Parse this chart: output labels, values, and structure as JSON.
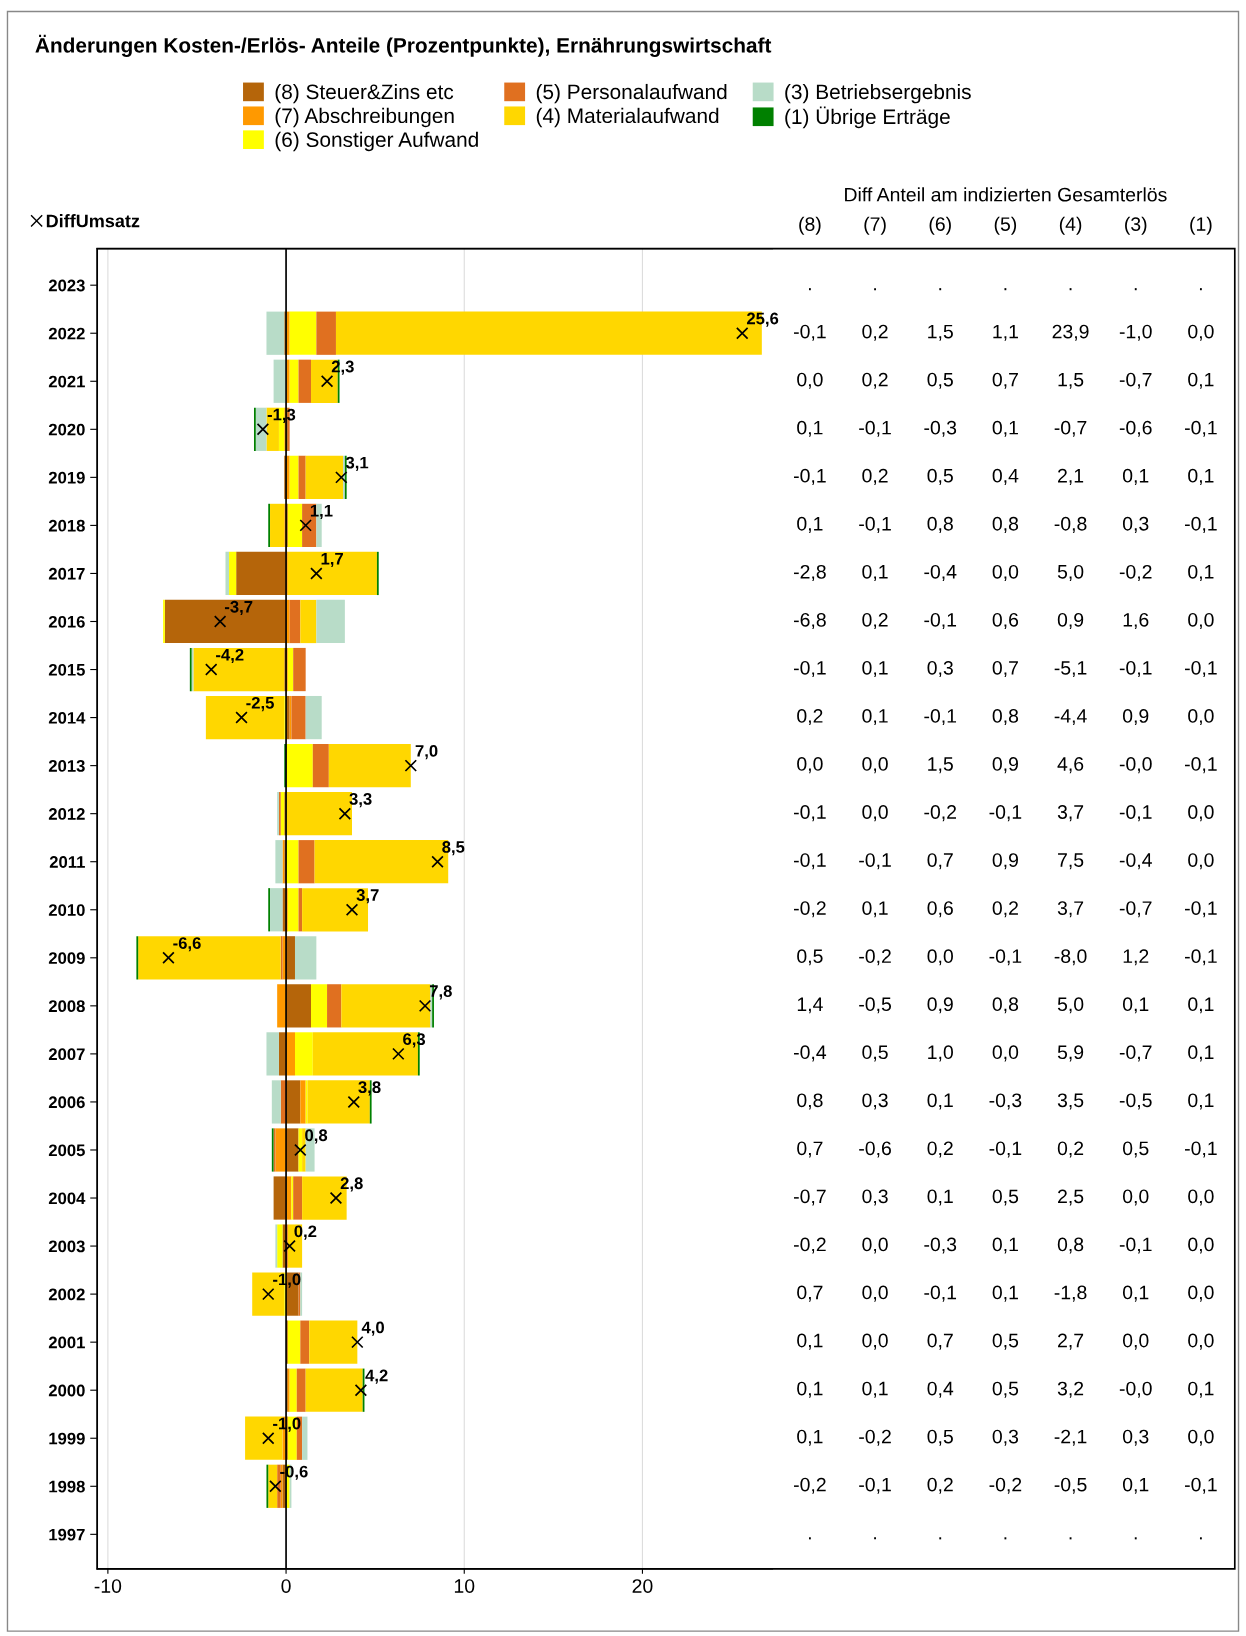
{
  "chart_data": {
    "type": "bar",
    "orientation": "horizontal",
    "stacked": true,
    "title": "Änderungen Kosten-/Erlös- Anteile (Prozentpunkte), Ernährungswirtschaft",
    "categories": [
      "2023",
      "2022",
      "2021",
      "2020",
      "2019",
      "2018",
      "2017",
      "2016",
      "2015",
      "2014",
      "2013",
      "2012",
      "2011",
      "2010",
      "2009",
      "2008",
      "2007",
      "2006",
      "2005",
      "2004",
      "2003",
      "2002",
      "2001",
      "2000",
      "1999",
      "1998",
      "1997"
    ],
    "xlim": [
      -10.6,
      27.3
    ],
    "xticks": [
      -10,
      0,
      10,
      20
    ],
    "grid": "x",
    "legend": "top",
    "ref_lines": [
      {
        "axis": "x",
        "value": 0,
        "color": "#000000",
        "line_style": "solid"
      }
    ],
    "annotations": [
      "Diff Anteil am indizierten Gesamterlös",
      "(8)",
      "(7)",
      "(6)",
      "(5)",
      "(4)",
      "(3)",
      "(1)"
    ],
    "series": [
      {
        "name": "(8) Steuer&Zins etc",
        "color": "#b5650a",
        "values": [
          null,
          -0.1,
          0.0,
          0.1,
          -0.1,
          0.1,
          -2.8,
          -6.8,
          -0.1,
          0.2,
          0.0,
          -0.1,
          -0.1,
          -0.2,
          0.5,
          1.4,
          -0.4,
          0.8,
          0.7,
          -0.7,
          -0.2,
          0.7,
          0.1,
          0.1,
          0.1,
          -0.2,
          null
        ],
        "value_labels": [
          ".",
          "-0,1",
          "0,0",
          "0,1",
          "-0,1",
          "0,1",
          "-2,8",
          "-6,8",
          "-0,1",
          "0,2",
          "0,0",
          "-0,1",
          "-0,1",
          "-0,2",
          "0,5",
          "1,4",
          "-0,4",
          "0,8",
          "0,7",
          "-0,7",
          "-0,2",
          "0,7",
          "0,1",
          "0,1",
          "0,1",
          "-0,2",
          "."
        ]
      },
      {
        "name": "(7) Abschreibungen",
        "color": "#ff9900",
        "values": [
          null,
          0.2,
          0.2,
          -0.1,
          0.2,
          -0.1,
          0.1,
          0.2,
          0.1,
          0.1,
          0.0,
          0.0,
          -0.1,
          0.1,
          -0.2,
          -0.5,
          0.5,
          0.3,
          -0.6,
          0.3,
          0.0,
          0.0,
          0.0,
          0.1,
          -0.2,
          -0.1,
          null
        ],
        "value_labels": [
          ".",
          "0,2",
          "0,2",
          "-0,1",
          "0,2",
          "-0,1",
          "0,1",
          "0,2",
          "0,1",
          "0,1",
          "0,0",
          "0,0",
          "-0,1",
          "0,1",
          "-0,2",
          "-0,5",
          "0,5",
          "0,3",
          "-0,6",
          "0,3",
          "0,0",
          "0,0",
          "0,0",
          "0,1",
          "-0,2",
          "-0,1",
          "."
        ]
      },
      {
        "name": "(6) Sonstiger Aufwand",
        "color": "#ffff00",
        "values": [
          null,
          1.5,
          0.5,
          -0.3,
          0.5,
          0.8,
          -0.4,
          -0.1,
          0.3,
          -0.1,
          1.5,
          -0.2,
          0.7,
          0.6,
          0.0,
          0.9,
          1.0,
          0.1,
          0.2,
          0.1,
          -0.3,
          -0.1,
          0.7,
          0.4,
          0.5,
          0.2,
          null
        ],
        "value_labels": [
          ".",
          "1,5",
          "0,5",
          "-0,3",
          "0,5",
          "0,8",
          "-0,4",
          "-0,1",
          "0,3",
          "-0,1",
          "1,5",
          "-0,2",
          "0,7",
          "0,6",
          "0,0",
          "0,9",
          "1,0",
          "0,1",
          "0,2",
          "0,1",
          "-0,3",
          "-0,1",
          "0,7",
          "0,4",
          "0,5",
          "0,2",
          "."
        ]
      },
      {
        "name": "(5) Personalaufwand",
        "color": "#e07020",
        "values": [
          null,
          1.1,
          0.7,
          0.1,
          0.4,
          0.8,
          0.0,
          0.6,
          0.7,
          0.8,
          0.9,
          -0.1,
          0.9,
          0.2,
          -0.1,
          0.8,
          0.0,
          -0.3,
          -0.1,
          0.5,
          0.1,
          0.1,
          0.5,
          0.5,
          0.3,
          -0.2,
          null
        ],
        "value_labels": [
          ".",
          "1,1",
          "0,7",
          "0,1",
          "0,4",
          "0,8",
          "0,0",
          "0,6",
          "0,7",
          "0,8",
          "0,9",
          "-0,1",
          "0,9",
          "0,2",
          "-0,1",
          "0,8",
          "0,0",
          "-0,3",
          "-0,1",
          "0,5",
          "0,1",
          "0,1",
          "0,5",
          "0,5",
          "0,3",
          "-0,2",
          "."
        ]
      },
      {
        "name": "(4) Materialaufwand",
        "color": "#ffd700",
        "values": [
          null,
          23.9,
          1.5,
          -0.7,
          2.1,
          -0.8,
          5.0,
          0.9,
          -5.1,
          -4.4,
          4.6,
          3.7,
          7.5,
          3.7,
          -8.0,
          5.0,
          5.9,
          3.5,
          0.2,
          2.5,
          0.8,
          -1.8,
          2.7,
          3.2,
          -2.1,
          -0.5,
          null
        ],
        "value_labels": [
          ".",
          "23,9",
          "1,5",
          "-0,7",
          "2,1",
          "-0,8",
          "5,0",
          "0,9",
          "-5,1",
          "-4,4",
          "4,6",
          "3,7",
          "7,5",
          "3,7",
          "-8,0",
          "5,0",
          "5,9",
          "3,5",
          "0,2",
          "2,5",
          "0,8",
          "-1,8",
          "2,7",
          "3,2",
          "-2,1",
          "-0,5",
          "."
        ]
      },
      {
        "name": "(3) Betriebsergebnis",
        "color": "#b8dcc8",
        "values": [
          null,
          -1.0,
          -0.7,
          -0.6,
          0.1,
          0.3,
          -0.2,
          1.6,
          -0.1,
          0.9,
          -0.0,
          -0.1,
          -0.4,
          -0.7,
          1.2,
          0.1,
          -0.7,
          -0.5,
          0.5,
          0.0,
          -0.1,
          0.1,
          0.0,
          -0.0,
          0.3,
          0.1,
          null
        ],
        "value_labels": [
          ".",
          "-1,0",
          "-0,7",
          "-0,6",
          "0,1",
          "0,3",
          "-0,2",
          "1,6",
          "-0,1",
          "0,9",
          "-0,0",
          "-0,1",
          "-0,4",
          "-0,7",
          "1,2",
          "0,1",
          "-0,7",
          "-0,5",
          "0,5",
          "0,0",
          "-0,1",
          "0,1",
          "0,0",
          "-0,0",
          "0,3",
          "0,1",
          "."
        ]
      },
      {
        "name": "(1) Übrige Erträge",
        "color": "#008000",
        "values": [
          null,
          0.0,
          0.1,
          -0.1,
          0.1,
          -0.1,
          0.1,
          0.0,
          -0.1,
          0.0,
          -0.1,
          0.0,
          0.0,
          -0.1,
          -0.1,
          0.1,
          0.1,
          0.1,
          -0.1,
          0.0,
          0.0,
          0.0,
          0.0,
          0.1,
          0.0,
          -0.1,
          null
        ],
        "value_labels": [
          ".",
          "0,0",
          "0,1",
          "-0,1",
          "0,1",
          "-0,1",
          "0,1",
          "0,0",
          "-0,1",
          "0,0",
          "-0,1",
          "0,0",
          "0,0",
          "-0,1",
          "-0,1",
          "0,1",
          "0,1",
          "0,1",
          "-0,1",
          "0,0",
          "0,0",
          "0,0",
          "0,0",
          "0,1",
          "0,0",
          "-0,1",
          "."
        ]
      },
      {
        "name": "DiffUmsatz",
        "type": "scatter",
        "marker": "cross",
        "color": "#000000",
        "values": [
          null,
          25.6,
          2.3,
          -1.3,
          3.1,
          1.1,
          1.7,
          -3.7,
          -4.2,
          -2.5,
          7.0,
          3.3,
          8.5,
          3.7,
          -6.6,
          7.8,
          6.3,
          3.8,
          0.8,
          2.8,
          0.2,
          -1.0,
          4.0,
          4.2,
          -1.0,
          -0.6,
          null
        ],
        "value_labels": [
          null,
          "25,6",
          "2,3",
          "-1,3",
          "3,1",
          "1,1",
          "1,7",
          "-3,7",
          "-4,2",
          "-2,5",
          "7,0",
          "3,3",
          "8,5",
          "3,7",
          "-6,6",
          "7,8",
          "6,3",
          "3,8",
          "0,8",
          "2,8",
          "0,2",
          "-1,0",
          "4,0",
          "4,2",
          "-1,0",
          "-0,6",
          null
        ]
      }
    ]
  }
}
